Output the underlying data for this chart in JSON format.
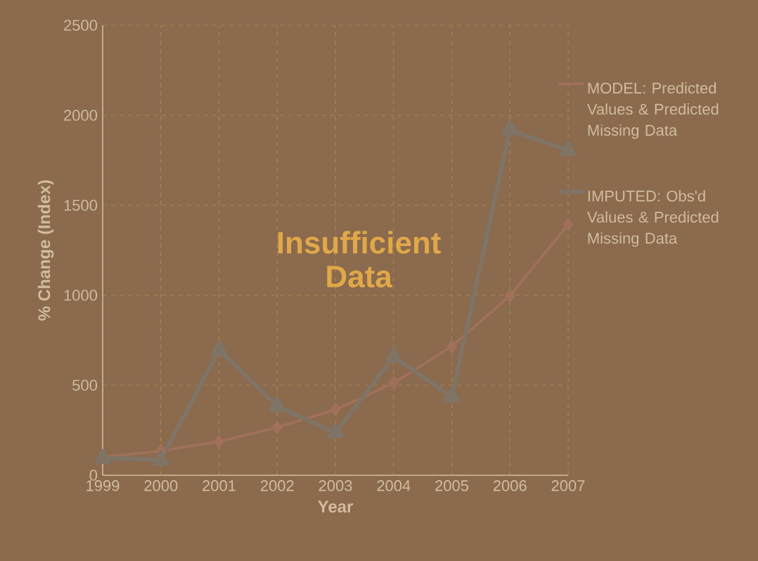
{
  "chart_data": {
    "type": "line",
    "xlabel": "Year",
    "ylabel": "% Change (Index)",
    "x": [
      1999,
      2000,
      2001,
      2002,
      2003,
      2004,
      2005,
      2006,
      2007
    ],
    "series": [
      {
        "name": "MODEL: Predicted Values & Predicted Missing Data",
        "color": "#a0705a",
        "marker": "diamond",
        "values": [
          100,
          135,
          187,
          266,
          364,
          512,
          716,
          997,
          1393
        ]
      },
      {
        "name": "IMPUTED: Obs'd Values & Predicted Missing Data",
        "color": "#7f7466",
        "marker": "triangle",
        "values": [
          95,
          86,
          695,
          383,
          234,
          659,
          434,
          1919,
          1805
        ]
      }
    ],
    "xlim": [
      1999,
      2007
    ],
    "xticks": [
      1999,
      2000,
      2001,
      2002,
      2003,
      2004,
      2005,
      2006,
      2007
    ],
    "ylim": [
      0,
      2500
    ],
    "yticks": [
      0,
      500,
      1000,
      1500,
      2000,
      2500
    ],
    "grid": true,
    "legend": "right",
    "line_style": "solid",
    "annotations": [
      "Insufficient Data"
    ]
  }
}
